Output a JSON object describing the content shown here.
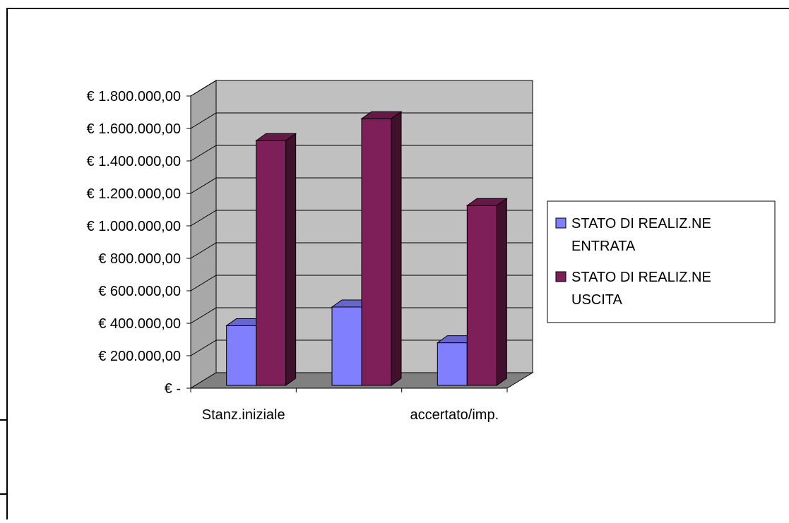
{
  "colors": {
    "plot_back": "#c0c0c0",
    "plot_side": "#a8a8a8",
    "floor": "#808080",
    "series1": "#8080ff",
    "series2": "#7f1f5a",
    "frame": "#000000"
  },
  "chart_data": {
    "type": "bar",
    "title": "",
    "xlabel": "",
    "ylabel": "",
    "categories": [
      "Stanz.iniziale",
      "",
      "accertato/imp."
    ],
    "series": [
      {
        "name": "STATO DI REALIZ.NE ENTRATA",
        "values": [
          385000,
          500000,
          280000
        ]
      },
      {
        "name": "STATO DI REALIZ.NE USCITA",
        "values": [
          1525000,
          1660000,
          1125000
        ]
      }
    ],
    "ylim": [
      0,
      1800000
    ],
    "yticks": [
      {
        "value": 0,
        "label": "€ -"
      },
      {
        "value": 200000,
        "label": "€ 200.000,00"
      },
      {
        "value": 400000,
        "label": "€ 400.000,00"
      },
      {
        "value": 600000,
        "label": "€ 600.000,00"
      },
      {
        "value": 800000,
        "label": "€ 800.000,00"
      },
      {
        "value": 1000000,
        "label": "€ 1.000.000,00"
      },
      {
        "value": 1200000,
        "label": "€ 1.200.000,00"
      },
      {
        "value": 1400000,
        "label": "€ 1.400.000,00"
      },
      {
        "value": 1600000,
        "label": "€ 1.600.000,00"
      },
      {
        "value": 1800000,
        "label": "€ 1.800.000,00"
      }
    ],
    "legend": {
      "placement": "right",
      "items": [
        {
          "lines": [
            "STATO DI REALIZ.NE",
            "ENTRATA"
          ]
        },
        {
          "lines": [
            "STATO DI REALIZ.NE",
            "USCITA"
          ]
        }
      ]
    },
    "grid": true,
    "style": "3d-clustered-column"
  }
}
